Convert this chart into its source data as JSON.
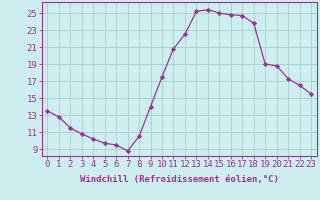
{
  "x": [
    0,
    1,
    2,
    3,
    4,
    5,
    6,
    7,
    8,
    9,
    10,
    11,
    12,
    13,
    14,
    15,
    16,
    17,
    18,
    19,
    20,
    21,
    22,
    23
  ],
  "y": [
    13.5,
    12.8,
    11.5,
    10.8,
    10.2,
    9.7,
    9.5,
    8.8,
    10.5,
    14.0,
    17.5,
    20.8,
    22.5,
    25.2,
    25.4,
    25.0,
    24.8,
    24.7,
    23.8,
    19.0,
    18.8,
    17.3,
    16.5,
    15.5
  ],
  "line_color": "#993399",
  "marker": "D",
  "marker_size": 2.2,
  "bg_color": "#cceeee",
  "grid_color": "#aacccc",
  "xlabel": "Windchill (Refroidissement éolien,°C)",
  "xlabel_fontsize": 6.5,
  "xtick_labels": [
    "0",
    "1",
    "2",
    "3",
    "4",
    "5",
    "6",
    "7",
    "8",
    "9",
    "10",
    "11",
    "12",
    "13",
    "14",
    "15",
    "16",
    "17",
    "18",
    "19",
    "20",
    "21",
    "22",
    "23"
  ],
  "ytick_values": [
    9,
    11,
    13,
    15,
    17,
    19,
    21,
    23,
    25
  ],
  "ylim": [
    8.2,
    26.3
  ],
  "xlim": [
    -0.5,
    23.5
  ],
  "tick_color": "#993399",
  "tick_fontsize": 6.5,
  "spine_color": "#993399"
}
